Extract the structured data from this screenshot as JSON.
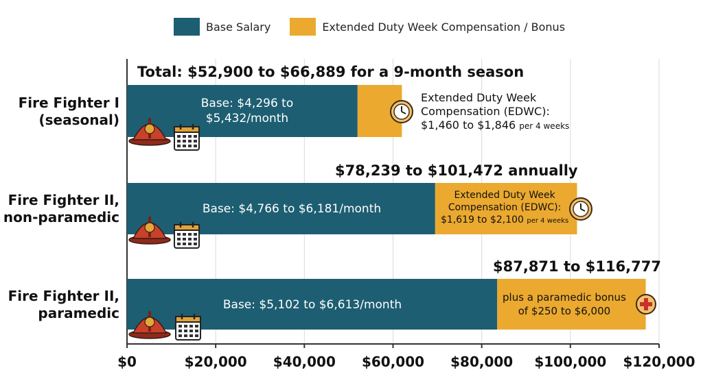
{
  "colors": {
    "base": "#1d5e72",
    "extended": "#eba92f",
    "grid": "#d9d9d9",
    "axis": "#333333"
  },
  "legend": [
    {
      "label": "Base Salary",
      "color": "#1d5e72"
    },
    {
      "label": "Extended Duty Week Compensation / Bonus",
      "color": "#eba92f"
    }
  ],
  "chart_data": {
    "type": "bar",
    "orientation": "horizontal",
    "stacked": true,
    "xlim": [
      0,
      120000
    ],
    "x_ticks": [
      "$0",
      "$20,000",
      "$40,000",
      "$60,000",
      "$80,000",
      "$100,000",
      "$120,000"
    ],
    "x_tick_values": [
      0,
      20000,
      40000,
      60000,
      80000,
      100000,
      120000
    ],
    "grid": true,
    "legend_position": "top",
    "categories": [
      {
        "line1": "Fire Fighter I",
        "line2": "(seasonal)"
      },
      {
        "line1": "Fire Fighter II,",
        "line2": "non-paramedic"
      },
      {
        "line1": "Fire Fighter II,",
        "line2": "paramedic"
      }
    ],
    "series": [
      {
        "name": "Base Salary",
        "values": [
          52000,
          69500,
          83500
        ]
      },
      {
        "name": "Extended Duty Week Compensation / Bonus",
        "values": [
          10000,
          32000,
          33500
        ]
      }
    ],
    "totals": [
      "Total: $52,900 to $66,889 for a 9-month season",
      "$78,239 to $101,472 annually",
      "$87,871 to $116,777"
    ],
    "base_labels": [
      {
        "line1": "Base: $4,296 to",
        "line2": "$5,432/month"
      },
      {
        "line1": "Base: $4,766 to $6,181/month",
        "line2": ""
      },
      {
        "line1": "Base: $5,102 to $6,613/month",
        "line2": ""
      }
    ],
    "extended_labels": [
      {
        "line1": "Extended Duty Week",
        "line2": "Compensation (EDWC):",
        "line3": "$1,460 to $1,846",
        "note": "per 4 weeks"
      },
      {
        "line1": "Extended Duty Week",
        "line2": "Compensation (EDWC):",
        "line3": "$1,619 to $2,100",
        "note": "per 4 weeks"
      },
      {
        "line1": "plus a paramedic bonus",
        "line2": "of $250 to $6,000",
        "line3": "",
        "note": ""
      }
    ],
    "icons": [
      "firefighter-helmet-icon",
      "calendar-icon",
      "clock-icon",
      "medical-cross-icon"
    ]
  }
}
